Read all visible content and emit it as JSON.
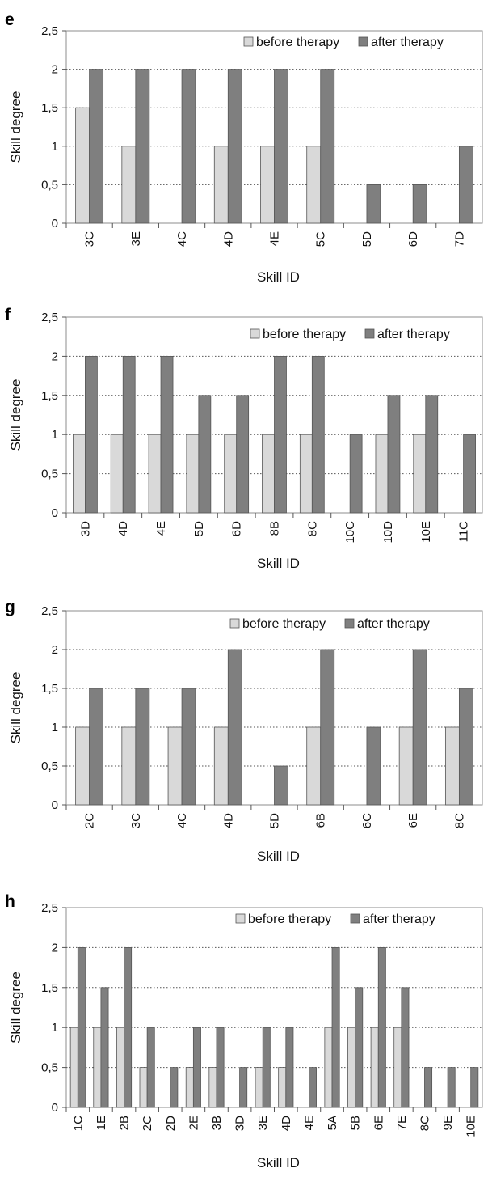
{
  "chart_data": [
    {
      "panel": "e",
      "type": "bar",
      "categories": [
        "3C",
        "3E",
        "4C",
        "4D",
        "4E",
        "5C",
        "5D",
        "6D",
        "7D"
      ],
      "series": [
        {
          "name": "before therapy",
          "color": "#d9d9d9",
          "values": [
            1.5,
            1,
            0,
            1,
            1,
            1,
            0,
            0,
            0
          ]
        },
        {
          "name": "after therapy",
          "color": "#7f7f7f",
          "values": [
            2,
            2,
            2,
            2,
            2,
            2,
            0.5,
            0.5,
            1
          ]
        }
      ],
      "xlabel": "Skill ID",
      "ylabel": "Skill degree",
      "ylim": [
        0,
        2.5
      ],
      "yticks": [
        "0",
        "0,5",
        "1",
        "1,5",
        "2",
        "2,5"
      ],
      "grid": "horizontal dotted",
      "legend": "top-right"
    },
    {
      "panel": "f",
      "type": "bar",
      "categories": [
        "3D",
        "4D",
        "4E",
        "5D",
        "6D",
        "8B",
        "8C",
        "10C",
        "10D",
        "10E",
        "11C"
      ],
      "series": [
        {
          "name": "before therapy",
          "color": "#d9d9d9",
          "values": [
            1,
            1,
            1,
            1,
            1,
            1,
            1,
            0,
            1,
            1,
            0
          ]
        },
        {
          "name": "after therapy",
          "color": "#7f7f7f",
          "values": [
            2,
            2,
            2,
            1.5,
            1.5,
            2,
            2,
            1,
            1.5,
            1.5,
            1
          ]
        }
      ],
      "xlabel": "Skill ID",
      "ylabel": "Skill degree",
      "ylim": [
        0,
        2.5
      ],
      "yticks": [
        "0",
        "0,5",
        "1",
        "1,5",
        "2",
        "2,5"
      ],
      "grid": "horizontal dotted",
      "legend": "top-right"
    },
    {
      "panel": "g",
      "type": "bar",
      "categories": [
        "2C",
        "3C",
        "4C",
        "4D",
        "5D",
        "6B",
        "6C",
        "6E",
        "8C"
      ],
      "series": [
        {
          "name": "before therapy",
          "color": "#d9d9d9",
          "values": [
            1,
            1,
            1,
            1,
            0,
            1,
            0,
            1,
            1
          ]
        },
        {
          "name": "after therapy",
          "color": "#7f7f7f",
          "values": [
            1.5,
            1.5,
            1.5,
            2,
            0.5,
            2,
            1,
            2,
            1.5
          ]
        }
      ],
      "xlabel": "Skill ID",
      "ylabel": "Skill degree",
      "ylim": [
        0,
        2.5
      ],
      "yticks": [
        "0",
        "0,5",
        "1",
        "1,5",
        "2",
        "2,5"
      ],
      "grid": "horizontal dotted",
      "legend": "top-right"
    },
    {
      "panel": "h",
      "type": "bar",
      "categories": [
        "1C",
        "1E",
        "2B",
        "2C",
        "2D",
        "2E",
        "3B",
        "3D",
        "3E",
        "4D",
        "4E",
        "5A",
        "5B",
        "6E",
        "7E",
        "8C",
        "9E",
        "10E"
      ],
      "series": [
        {
          "name": "before therapy",
          "color": "#d9d9d9",
          "values": [
            1,
            1,
            1,
            0.5,
            0,
            0.5,
            0.5,
            0,
            0.5,
            0.5,
            0,
            1,
            1,
            1,
            1,
            0,
            0,
            0
          ]
        },
        {
          "name": "after therapy",
          "color": "#7f7f7f",
          "values": [
            2,
            1.5,
            2,
            1,
            0.5,
            1,
            1,
            0.5,
            1,
            1,
            0.5,
            2,
            1.5,
            2,
            1.5,
            0.5,
            0.5,
            0.5
          ]
        }
      ],
      "xlabel": "Skill ID",
      "ylabel": "Skill degree",
      "ylim": [
        0,
        2.5
      ],
      "yticks": [
        "0",
        "0,5",
        "1",
        "1,5",
        "2",
        "2,5"
      ],
      "grid": "horizontal dotted",
      "legend": "top-right"
    }
  ]
}
